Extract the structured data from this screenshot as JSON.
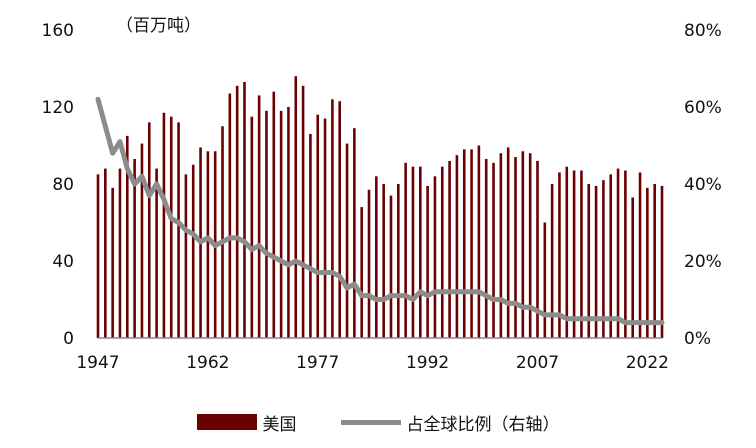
{
  "chart_data": {
    "type": "bar",
    "unit_label": "（百万吨）",
    "x_tick_labels": [
      "1947",
      "1962",
      "1977",
      "1992",
      "2007",
      "2022"
    ],
    "y_left": {
      "ticks": [
        "0",
        "40",
        "80",
        "120",
        "160"
      ],
      "lim": [
        0,
        160
      ]
    },
    "y_right": {
      "ticks": [
        "0%",
        "20%",
        "40%",
        "60%",
        "80%"
      ],
      "lim": [
        0,
        80
      ]
    },
    "grid": false,
    "legend_position": "bottom",
    "colors": {
      "bar": "#6b0000",
      "line": "#8c8c8c"
    },
    "x": [
      1947,
      1948,
      1949,
      1950,
      1951,
      1952,
      1953,
      1954,
      1955,
      1956,
      1957,
      1958,
      1959,
      1960,
      1961,
      1962,
      1963,
      1964,
      1965,
      1966,
      1967,
      1968,
      1969,
      1970,
      1971,
      1972,
      1973,
      1974,
      1975,
      1976,
      1977,
      1978,
      1979,
      1980,
      1981,
      1982,
      1983,
      1984,
      1985,
      1986,
      1987,
      1988,
      1989,
      1990,
      1991,
      1992,
      1993,
      1994,
      1995,
      1996,
      1997,
      1998,
      1999,
      2000,
      2001,
      2002,
      2003,
      2004,
      2005,
      2006,
      2007,
      2008,
      2009,
      2010,
      2011,
      2012,
      2013,
      2014,
      2015,
      2016,
      2017,
      2018,
      2019,
      2020,
      2021,
      2022,
      2023,
      2024
    ],
    "series": [
      {
        "name": "美国",
        "type": "bar",
        "values": [
          85,
          88,
          78,
          88,
          105,
          93,
          101,
          112,
          88,
          117,
          115,
          112,
          85,
          90,
          99,
          97,
          97,
          110,
          127,
          131,
          133,
          115,
          126,
          118,
          128,
          118,
          120,
          136,
          131,
          106,
          116,
          114,
          124,
          123,
          101,
          109,
          68,
          77,
          84,
          80,
          74,
          80,
          91,
          89,
          89,
          79,
          84,
          89,
          92,
          95,
          98,
          98,
          100,
          93,
          91,
          96,
          99,
          94,
          97,
          96,
          92,
          60,
          80,
          86,
          89,
          87,
          87,
          80,
          79,
          82,
          85,
          88,
          87,
          73,
          86,
          78,
          80,
          79
        ]
      },
      {
        "name": "占全球比例（右轴）",
        "type": "line",
        "axis": "right",
        "values": [
          62,
          55,
          48,
          51,
          44,
          40,
          42,
          37,
          40,
          36,
          31,
          30,
          28,
          27,
          25,
          26,
          24,
          25,
          26,
          26,
          25,
          23,
          24,
          22,
          21,
          20,
          19,
          20,
          19,
          18,
          17,
          17,
          17,
          16,
          13,
          14,
          11,
          11,
          10,
          10,
          11,
          11,
          11,
          10,
          12,
          11,
          12,
          12,
          12,
          12,
          12,
          12,
          12,
          11,
          10,
          10,
          9,
          9,
          8,
          8,
          7,
          6,
          6,
          6,
          5,
          5,
          5,
          5,
          5,
          5,
          5,
          5,
          4,
          4,
          4,
          4,
          4,
          4
        ]
      }
    ]
  }
}
